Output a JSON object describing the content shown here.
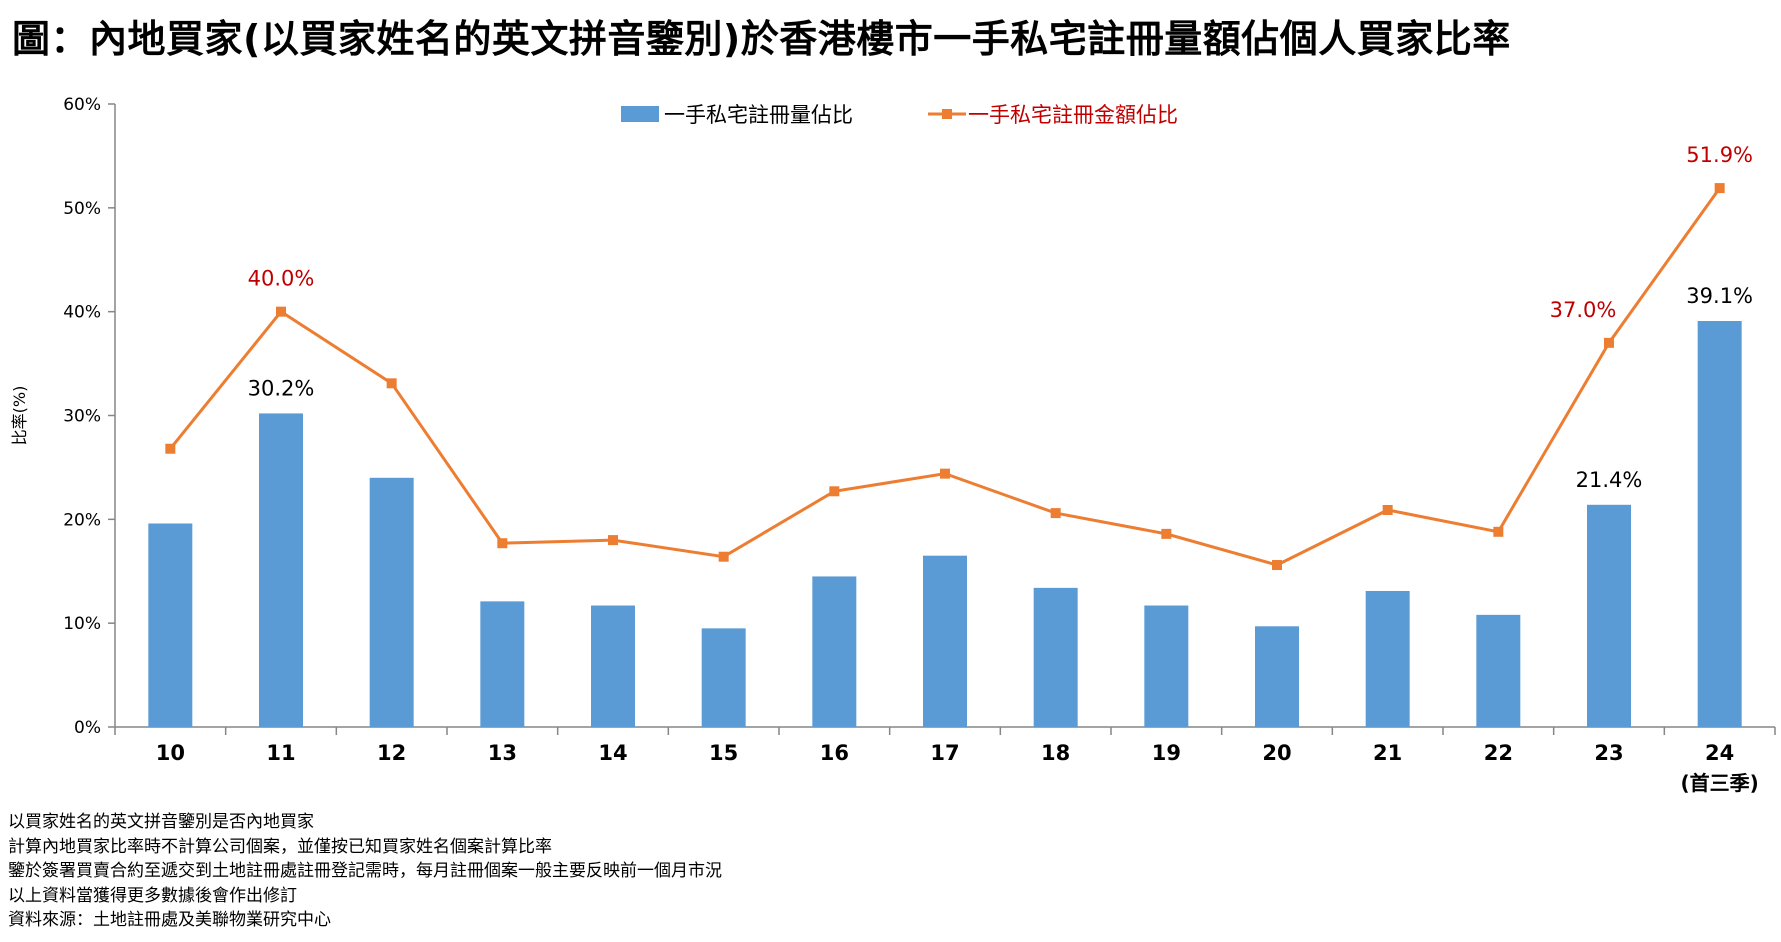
{
  "title": "圖：內地買家(以買家姓名的英文拼音鑒別)於香港樓市一手私宅註冊量額佔個人買家比率",
  "notes": [
    "以買家姓名的英文拼音鑒別是否內地買家",
    "計算內地買家比率時不計算公司個案，並僅按已知買家姓名個案計算比率",
    "鑒於簽署買賣合約至遞交到土地註冊處註冊登記需時，每月註冊個案一般主要反映前一個月市況",
    "以上資料當獲得更多數據後會作出修訂",
    "資料來源：土地註冊處及美聯物業研究中心"
  ],
  "colors": {
    "bar": "#5b9bd5",
    "line": "#ed7d31",
    "line_label": "#c00000",
    "bar_label": "#000000",
    "axis": "#868686"
  },
  "chart_data": {
    "type": "bar",
    "ylabel": "比率(%)",
    "ylim": [
      0,
      60
    ],
    "yticks": [
      0,
      10,
      20,
      30,
      40,
      50,
      60
    ],
    "ytick_labels": [
      "0%",
      "10%",
      "20%",
      "30%",
      "40%",
      "50%",
      "60%"
    ],
    "categories": [
      "10",
      "11",
      "12",
      "13",
      "14",
      "15",
      "16",
      "17",
      "18",
      "19",
      "20",
      "21",
      "22",
      "23",
      "24"
    ],
    "category_sublabels": [
      "",
      "",
      "",
      "",
      "",
      "",
      "",
      "",
      "",
      "",
      "",
      "",
      "",
      "",
      "(首三季)"
    ],
    "legend_position": "top-center",
    "grid": false,
    "series": [
      {
        "name": "一手私宅註冊量佔比",
        "type": "bar",
        "values": [
          19.6,
          30.2,
          24.0,
          12.1,
          11.7,
          9.5,
          14.5,
          16.5,
          13.4,
          11.7,
          9.7,
          13.1,
          10.8,
          21.4,
          39.1
        ],
        "data_labels": [
          "",
          "30.2%",
          "",
          "",
          "",
          "",
          "",
          "",
          "",
          "",
          "",
          "",
          "",
          "21.4%",
          "39.1%"
        ]
      },
      {
        "name": "一手私宅註冊金額佔比",
        "type": "line",
        "values": [
          26.8,
          40.0,
          33.1,
          17.7,
          18.0,
          16.4,
          22.7,
          24.4,
          20.6,
          18.6,
          15.6,
          20.9,
          18.8,
          37.0,
          51.9
        ],
        "data_labels": [
          "",
          "40.0%",
          "",
          "",
          "",
          "",
          "",
          "",
          "",
          "",
          "",
          "",
          "",
          "37.0%",
          "51.9%"
        ]
      }
    ]
  }
}
